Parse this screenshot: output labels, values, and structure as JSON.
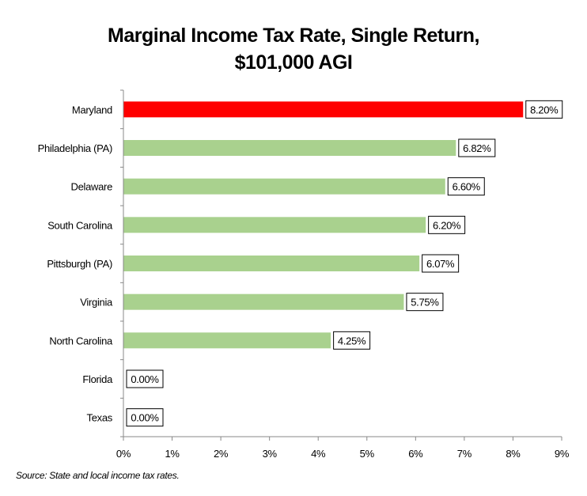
{
  "chart_data": {
    "type": "bar",
    "orientation": "horizontal",
    "title_line1": "Marginal Income Tax Rate, Single Return,",
    "title_line2": "$101,000 AGI",
    "categories": [
      "Maryland",
      "Philadelphia (PA)",
      "Delaware",
      "South Carolina",
      "Pittsburgh (PA)",
      "Virginia",
      "North Carolina",
      "Florida",
      "Texas"
    ],
    "values": [
      8.2,
      6.82,
      6.6,
      6.2,
      6.07,
      5.75,
      4.25,
      0.0,
      0.0
    ],
    "data_labels": [
      "8.20%",
      "6.82%",
      "6.60%",
      "6.20%",
      "6.07%",
      "5.75%",
      "4.25%",
      "0.00%",
      "0.00%"
    ],
    "colors": [
      "#ff0000",
      "#a9d18e",
      "#a9d18e",
      "#a9d18e",
      "#a9d18e",
      "#a9d18e",
      "#a9d18e",
      "#a9d18e",
      "#a9d18e"
    ],
    "xlim": [
      0,
      9
    ],
    "xticks": [
      "0%",
      "1%",
      "2%",
      "3%",
      "4%",
      "5%",
      "6%",
      "7%",
      "8%",
      "9%"
    ],
    "grid": false,
    "legend": "none",
    "source": "Source: State and local income tax rates."
  }
}
